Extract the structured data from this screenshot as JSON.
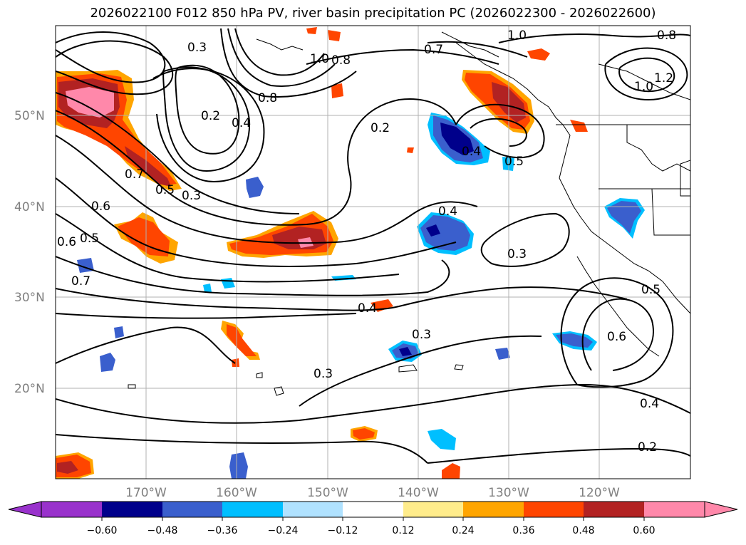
{
  "title": "2026022100 F012 850 hPa PV, river basin precipitation PC (2026022300 - 2026022600)",
  "lat_labels": [
    "50°N",
    "40°N",
    "30°N",
    "20°N"
  ],
  "lon_labels": [
    "170°W",
    "160°W",
    "150°W",
    "140°W",
    "130°W",
    "120°W"
  ],
  "colorbar": {
    "tick_labels": [
      "−0.60",
      "−0.48",
      "−0.36",
      "−0.24",
      "−0.12",
      "0.12",
      "0.24",
      "0.36",
      "0.48",
      "0.60"
    ],
    "colors": [
      "#9932cc",
      "#00008b",
      "#3a5fcd",
      "#00bfff",
      "#b0e2ff",
      "#ffffff",
      "#ffec8b",
      "#ffa500",
      "#ff4500",
      "#b22222",
      "#ff88aa"
    ]
  },
  "contour_labels": [
    {
      "text": "0.3"
    },
    {
      "text": "0.2"
    },
    {
      "text": "0.4"
    },
    {
      "text": "0.8"
    },
    {
      "text": "1.0"
    },
    {
      "text": "0.7"
    },
    {
      "text": "0.5"
    },
    {
      "text": "0.3"
    },
    {
      "text": "0.6"
    },
    {
      "text": "0.5"
    },
    {
      "text": "0.7"
    },
    {
      "text": "0.6"
    },
    {
      "text": "0.2"
    },
    {
      "text": "0.4"
    },
    {
      "text": "0.5"
    },
    {
      "text": "0.7"
    },
    {
      "text": "0.8"
    },
    {
      "text": "1.0"
    },
    {
      "text": "0.8"
    },
    {
      "text": "1.0"
    },
    {
      "text": "1.2"
    },
    {
      "text": "0.4"
    },
    {
      "text": "0.3"
    },
    {
      "text": "0.4"
    },
    {
      "text": "0.3"
    },
    {
      "text": "0.3"
    },
    {
      "text": "0.5"
    },
    {
      "text": "0.6"
    },
    {
      "text": "0.4"
    },
    {
      "text": "0.2"
    }
  ]
}
